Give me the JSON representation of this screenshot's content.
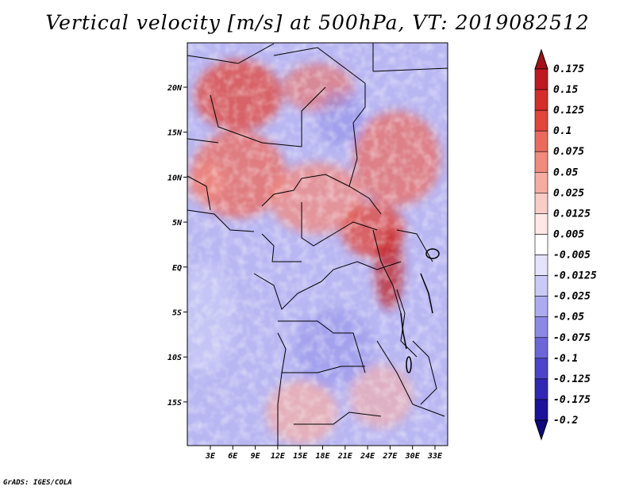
{
  "title": "Vertical velocity [m/s] at 500hPa, VT: 2019082512",
  "credit": "GrADS: IGES/COLA",
  "lat_ticks": [
    "20N",
    "15N",
    "10N",
    "5N",
    "EQ",
    "5S",
    "10S",
    "15S"
  ],
  "lon_ticks": [
    "3E",
    "6E",
    "9E",
    "12E",
    "15E",
    "18E",
    "21E",
    "24E",
    "27E",
    "30E",
    "33E"
  ],
  "colorbar": {
    "labels": [
      "0.175",
      "0.15",
      "0.125",
      "0.1",
      "0.075",
      "0.05",
      "0.025",
      "0.0125",
      "0.005",
      "-0.005",
      "-0.0125",
      "-0.025",
      "-0.05",
      "-0.075",
      "-0.1",
      "-0.125",
      "-0.175",
      "-0.2"
    ],
    "colors": [
      "#a50f15",
      "#c0181f",
      "#d62c2a",
      "#e2453a",
      "#ec6a5c",
      "#f28a7e",
      "#f6aca3",
      "#f9ccc6",
      "#fde8e5",
      "#ffffff",
      "#e4e3fb",
      "#cbcaf6",
      "#adabf0",
      "#8c89e6",
      "#6b66da",
      "#4b44cb",
      "#2f27b6",
      "#1a129c",
      "#0d0880"
    ]
  },
  "colors": {
    "land_red": "#ec6a5c",
    "land_blue": "#adabf0",
    "border": "#000000"
  }
}
